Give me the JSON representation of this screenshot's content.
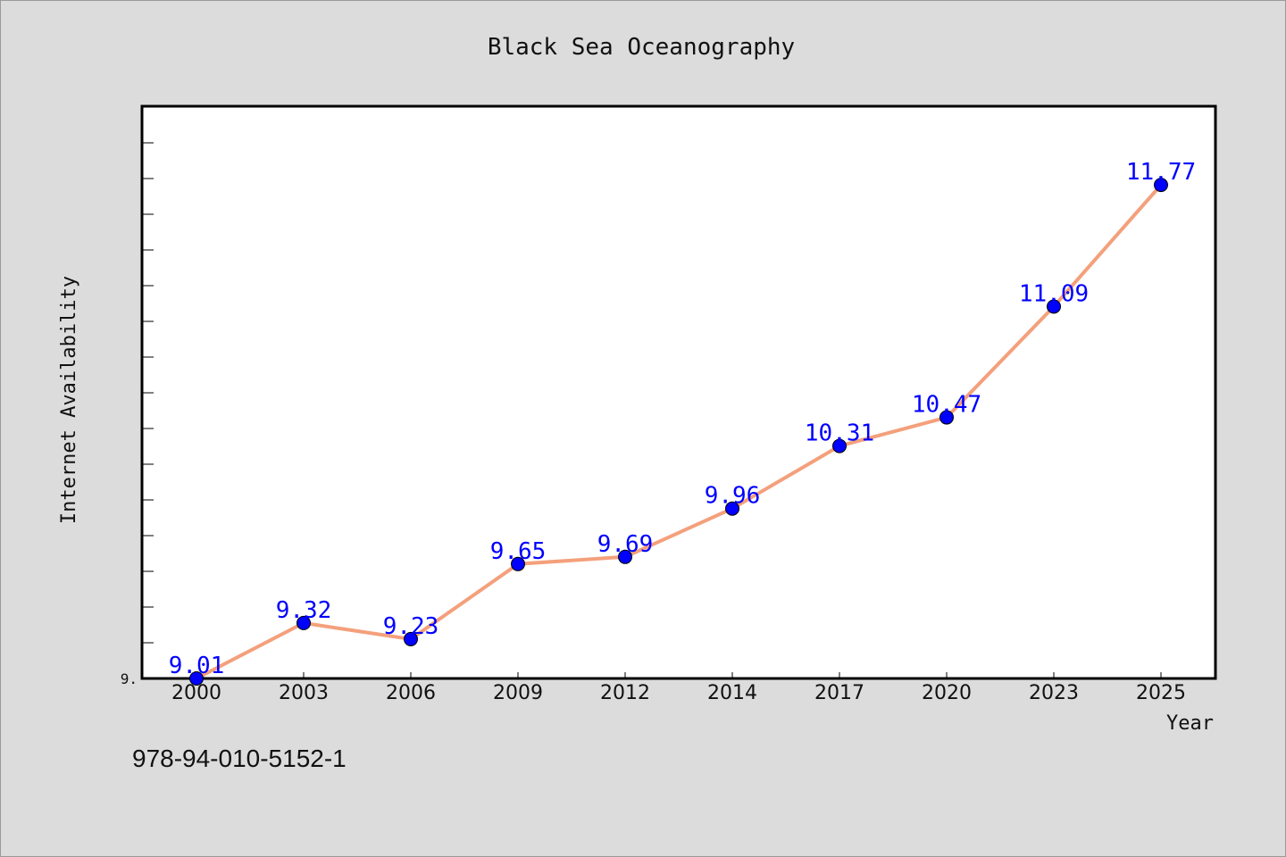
{
  "chart_data": {
    "type": "line",
    "title": "Black Sea Oceanography",
    "xlabel": "Year",
    "ylabel": "Internet Availability",
    "categories": [
      "2000",
      "2003",
      "2006",
      "2009",
      "2012",
      "2014",
      "2017",
      "2020",
      "2023",
      "2025"
    ],
    "series": [
      {
        "values": [
          9.01,
          9.32,
          9.23,
          9.65,
          9.69,
          9.96,
          10.31,
          10.47,
          11.09,
          11.77
        ]
      }
    ],
    "data_labels": [
      "9.01",
      "9.32",
      "9.23",
      "9.65",
      "9.69",
      "9.96",
      "10.31",
      "10.47",
      "11.09",
      "11.77"
    ],
    "ylim": [
      9.01,
      12.21
    ],
    "y_tick_labels": [
      "9."
    ],
    "grid": false,
    "colors": {
      "line": "#f4a07c",
      "marker": "#0000ff",
      "label": "#0000ff",
      "background": "#dcdcdc",
      "plot_background": "#ffffff"
    }
  },
  "footer": {
    "isbn": "978-94-010-5152-1"
  }
}
